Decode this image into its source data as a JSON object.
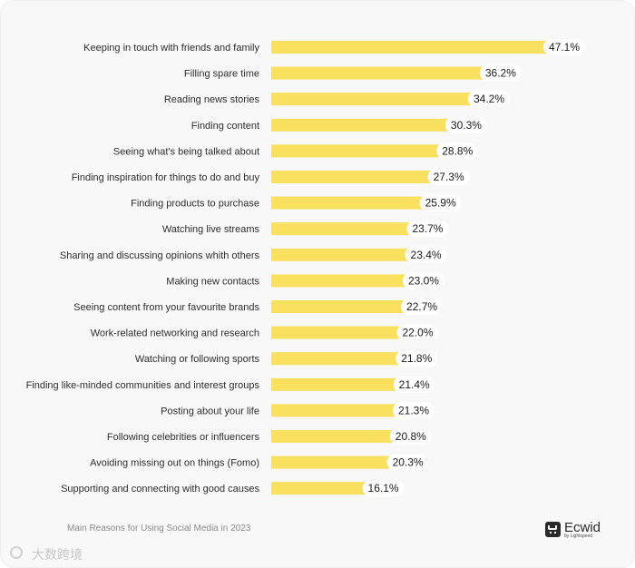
{
  "chart_data": {
    "type": "bar",
    "orientation": "horizontal",
    "categories": [
      "Keeping in touch with friends and family",
      "Filling spare time",
      "Reading news stories",
      "Finding content",
      "Seeing what's being talked about",
      "Finding inspiration for things to do and buy",
      "Finding products to purchase",
      "Watching live streams",
      "Sharing and discussing opinions whith others",
      "Making new contacts",
      "Seeing content from your favourite brands",
      "Work-related networking and research",
      "Watching or following sports",
      "Finding like-minded communities and interest groups",
      "Posting about your life",
      "Following celebrities or influencers",
      "Avoiding missing out on things (Fomo)",
      "Supporting and connecting with good causes"
    ],
    "values": [
      47.1,
      36.2,
      34.2,
      30.3,
      28.8,
      27.3,
      25.9,
      23.7,
      23.4,
      23.0,
      22.7,
      22.0,
      21.8,
      21.4,
      21.3,
      20.8,
      20.3,
      16.1
    ],
    "value_labels": [
      "47.1%",
      "36.2%",
      "34.2%",
      "30.3%",
      "28.8%",
      "27.3%",
      "25.9%",
      "23.7%",
      "23.4%",
      "23.0%",
      "22.7%",
      "22.0%",
      "21.8%",
      "21.4%",
      "21.3%",
      "20.8%",
      "20.3%",
      "16.1%"
    ],
    "xlim": [
      0,
      47.1
    ],
    "grid": false,
    "bar_color": "#f9e05e"
  },
  "footer": {
    "caption": "Main Reasons for Using Social Media in 2023"
  },
  "brand": {
    "name": "Ecwid",
    "tagline": "by Lightspeed",
    "icon": "cart-icon"
  },
  "watermark": {
    "text": "大数跨境",
    "icon": "logo-icon"
  },
  "colors": {
    "background": "#f8f8f8",
    "bar": "#f9e05e",
    "text": "#2d2d2d"
  }
}
